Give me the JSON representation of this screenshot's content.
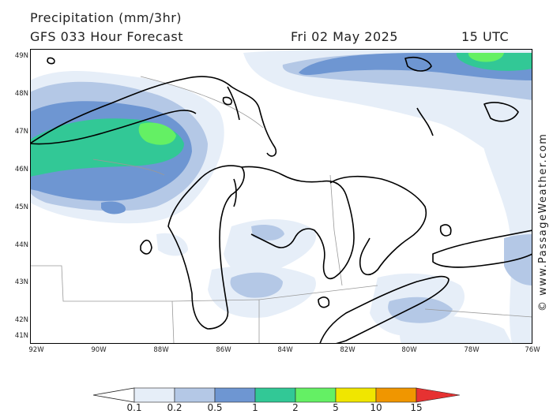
{
  "header": {
    "title": "Precipitation (mm/3hr)",
    "subtitle": "GFS 033 Hour Forecast",
    "date": "Fri 02 May 2025",
    "time": "15 UTC"
  },
  "watermark": "© www.PassageWeather.com",
  "latitude_labels": [
    "49N",
    "48N",
    "47N",
    "46N",
    "45N",
    "44N",
    "43N",
    "42N",
    "41N"
  ],
  "longitude_labels": [
    "92W",
    "90W",
    "88W",
    "86W",
    "84W",
    "82W",
    "80W",
    "78W",
    "76W"
  ],
  "legend": {
    "labels": [
      "0.1",
      "0.2",
      "0.5",
      "1",
      "2",
      "5",
      "10",
      "15"
    ],
    "colors": [
      "#e6eef8",
      "#b4c8e6",
      "#6e96d2",
      "#32c896",
      "#64f064",
      "#f0e600",
      "#f09600",
      "#e63232"
    ]
  },
  "colors": {
    "land": "#ffffff",
    "outline": "#000000",
    "borders": "#999999"
  }
}
